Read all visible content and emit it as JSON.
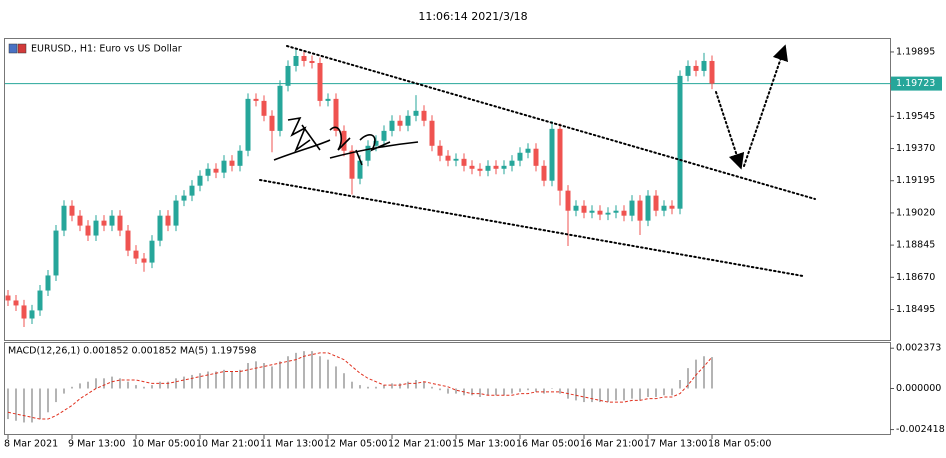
{
  "header": {
    "time": "11:06:14 2021/3/18"
  },
  "chart_data": [
    {
      "type": "candlestick",
      "title": "EURUSD., H1:  Euro vs US Dollar",
      "categories": [
        "8 Mar 2021",
        null,
        null,
        null,
        null,
        null,
        null,
        null,
        "9 Mar 13:00",
        null,
        null,
        null,
        null,
        null,
        null,
        null,
        "10 Mar 05:00",
        null,
        null,
        null,
        null,
        null,
        null,
        null,
        "10 Mar 21:00",
        null,
        null,
        null,
        null,
        null,
        null,
        null,
        "11 Mar 13:00",
        null,
        null,
        null,
        null,
        null,
        null,
        null,
        "12 Mar 05:00",
        null,
        null,
        null,
        null,
        null,
        null,
        null,
        "12 Mar 21:00",
        null,
        null,
        null,
        null,
        null,
        null,
        null,
        "15 Mar 13:00",
        null,
        null,
        null,
        null,
        null,
        null,
        null,
        "16 Mar 05:00",
        null,
        null,
        null,
        null,
        null,
        null,
        null,
        "16 Mar 21:00",
        null,
        null,
        null,
        null,
        null,
        null,
        null,
        "17 Mar 13:00",
        null,
        null,
        null,
        null,
        null,
        null,
        null,
        "18 Mar 05:00"
      ],
      "open": [
        1.18571,
        1.18544,
        1.18517,
        1.18446,
        1.1849,
        1.18598,
        1.1868,
        1.18924,
        1.19059,
        1.19005,
        1.18951,
        1.18897,
        1.18978,
        1.18951,
        1.19005,
        1.18924,
        1.18815,
        1.18772,
        1.1875,
        1.18869,
        1.19005,
        1.18951,
        1.19087,
        1.19114,
        1.19168,
        1.19222,
        1.1926,
        1.19239,
        1.19304,
        1.19276,
        1.19358,
        1.1964,
        1.19629,
        1.19548,
        1.19466,
        1.19711,
        1.19819,
        1.19873,
        1.19846,
        1.19835,
        1.19629,
        1.1964,
        1.19466,
        1.19358,
        1.19206,
        1.19304,
        1.19385,
        1.19412,
        1.19466,
        1.19521,
        1.19494,
        1.19548,
        1.19575,
        1.19521,
        1.19385,
        1.19331,
        1.19304,
        1.19314,
        1.19276,
        1.1926,
        1.19249,
        1.19276,
        1.1926,
        1.19276,
        1.19304,
        1.19347,
        1.19369,
        1.19276,
        1.19195,
        1.19477,
        1.19141,
        1.19032,
        1.19059,
        1.19021,
        1.19032,
        1.19011,
        1.19021,
        1.19032,
        1.19005,
        1.19087,
        1.18978,
        1.19114,
        1.19032,
        1.19059,
        1.19043,
        1.19765,
        1.19819,
        1.19792,
        1.19846
      ],
      "high": [
        1.18601,
        1.18574,
        1.18547,
        1.1852,
        1.18628,
        1.1871,
        1.18954,
        1.19089,
        1.19089,
        1.19035,
        1.18981,
        1.19008,
        1.19008,
        1.19035,
        1.19035,
        1.18954,
        1.18845,
        1.18802,
        1.18899,
        1.19035,
        1.19035,
        1.19117,
        1.19144,
        1.19198,
        1.19252,
        1.1929,
        1.1929,
        1.19334,
        1.19334,
        1.19388,
        1.1967,
        1.1967,
        1.19659,
        1.19578,
        1.19741,
        1.19849,
        1.1991,
        1.19903,
        1.19876,
        1.19865,
        1.1967,
        1.1967,
        1.19496,
        1.19388,
        1.19334,
        1.19415,
        1.19442,
        1.19496,
        1.19551,
        1.19551,
        1.19578,
        1.1966,
        1.19605,
        1.19551,
        1.19415,
        1.19361,
        1.19344,
        1.19344,
        1.19306,
        1.1929,
        1.19306,
        1.19306,
        1.19306,
        1.19334,
        1.19377,
        1.19399,
        1.19399,
        1.19306,
        1.1952,
        1.19507,
        1.19171,
        1.19089,
        1.19089,
        1.19062,
        1.19062,
        1.19051,
        1.19062,
        1.19062,
        1.19117,
        1.19117,
        1.19144,
        1.19144,
        1.19089,
        1.19089,
        1.19795,
        1.19849,
        1.19849,
        1.1989,
        1.19876
      ],
      "low": [
        1.18514,
        1.18487,
        1.184,
        1.18416,
        1.1846,
        1.18568,
        1.1865,
        1.18894,
        1.18975,
        1.18921,
        1.18867,
        1.18867,
        1.18921,
        1.18921,
        1.18894,
        1.18785,
        1.18742,
        1.187,
        1.1872,
        1.18839,
        1.18921,
        1.18921,
        1.19057,
        1.19084,
        1.19138,
        1.19192,
        1.19209,
        1.19209,
        1.19246,
        1.19246,
        1.19328,
        1.19599,
        1.19518,
        1.1935,
        1.19436,
        1.19681,
        1.19789,
        1.19816,
        1.19805,
        1.19599,
        1.19599,
        1.19436,
        1.19328,
        1.1912,
        1.19176,
        1.19274,
        1.19355,
        1.19382,
        1.19436,
        1.19464,
        1.19464,
        1.19518,
        1.19491,
        1.19355,
        1.19301,
        1.19274,
        1.19274,
        1.19246,
        1.1923,
        1.19219,
        1.19219,
        1.1923,
        1.1923,
        1.19246,
        1.19274,
        1.19317,
        1.19246,
        1.19165,
        1.19165,
        1.1906,
        1.1884,
        1.19002,
        1.18991,
        1.18991,
        1.18981,
        1.18981,
        1.18991,
        1.18975,
        1.18975,
        1.189,
        1.18948,
        1.19002,
        1.19002,
        1.19013,
        1.19013,
        1.19735,
        1.19762,
        1.19762,
        1.19693
      ],
      "close": [
        1.18544,
        1.18517,
        1.18446,
        1.1849,
        1.18598,
        1.1868,
        1.18924,
        1.19059,
        1.19005,
        1.18951,
        1.18897,
        1.18978,
        1.18951,
        1.19005,
        1.18924,
        1.18815,
        1.18772,
        1.1875,
        1.18869,
        1.19005,
        1.18951,
        1.19087,
        1.19114,
        1.19168,
        1.19222,
        1.1926,
        1.19239,
        1.19304,
        1.19276,
        1.19358,
        1.1964,
        1.19629,
        1.19548,
        1.19466,
        1.19711,
        1.19819,
        1.19873,
        1.19846,
        1.19835,
        1.19629,
        1.1964,
        1.19466,
        1.19358,
        1.19206,
        1.19304,
        1.19385,
        1.19412,
        1.19466,
        1.19521,
        1.19494,
        1.19548,
        1.19575,
        1.19521,
        1.19385,
        1.19331,
        1.19304,
        1.19314,
        1.19276,
        1.1926,
        1.19249,
        1.19276,
        1.1926,
        1.19276,
        1.19304,
        1.19347,
        1.19369,
        1.19276,
        1.19195,
        1.19477,
        1.19141,
        1.19032,
        1.19059,
        1.19021,
        1.19032,
        1.19011,
        1.19021,
        1.19032,
        1.19005,
        1.19087,
        1.18978,
        1.19114,
        1.19032,
        1.19059,
        1.19043,
        1.19765,
        1.19819,
        1.19792,
        1.19846,
        1.19723
      ],
      "up_color": "#26a69a",
      "down_color": "#ef5350",
      "ylim": [
        1.1834,
        1.1996
      ],
      "yticks": [
        1.19895,
        1.19545,
        {
          "value": 1.1937,
          "label": "1.19370"
        },
        1.19195,
        {
          "value": 1.1902,
          "label": "1.19020"
        },
        1.18845,
        {
          "value": 1.1867,
          "label": "1.18670"
        },
        1.18495
      ],
      "current_price": 1.19723,
      "current_price_color": "#26a69a"
    },
    {
      "type": "macd",
      "title": "MACD(12,26,1) 0.001852 0.001852 MA(5) 1.197598",
      "histogram": {
        "color": "#b4b4b4",
        "values": [
          -0.0018,
          -0.0019,
          -0.002,
          -0.002,
          -0.0018,
          -0.0014,
          -0.0008,
          -0.0003,
          0.0001,
          0.0003,
          0.0004,
          0.0006,
          0.0006,
          0.0007,
          0.0006,
          0.0004,
          0.0002,
          0.0001,
          0.0002,
          0.0004,
          0.0004,
          0.0006,
          0.0007,
          0.0008,
          0.0009,
          0.001,
          0.001,
          0.0011,
          0.001,
          0.0011,
          0.0015,
          0.0016,
          0.0015,
          0.0013,
          0.0016,
          0.0019,
          0.0021,
          0.0022,
          0.0022,
          0.0019,
          0.0017,
          0.0013,
          0.0009,
          0.0004,
          0.0002,
          0.0001,
          0.0001,
          0.0002,
          0.0003,
          0.0003,
          0.0004,
          0.0005,
          0.0004,
          0.0001,
          -0.0001,
          -0.0003,
          -0.0003,
          -0.0004,
          -0.0004,
          -0.0005,
          -0.0004,
          -0.0004,
          -0.0004,
          -0.0003,
          -0.0002,
          -0.0001,
          -0.0002,
          -0.0003,
          0,
          -0.0003,
          -0.0006,
          -0.0007,
          -0.0008,
          -0.0008,
          -0.0008,
          -0.0008,
          -0.0007,
          -0.0007,
          -0.0006,
          -0.0007,
          -0.0005,
          -0.0005,
          -0.0004,
          -0.0004,
          0.0005,
          0.0012,
          0.0017,
          0.0019,
          0.001852
        ]
      },
      "signal": {
        "color": "#e0301e",
        "values": [
          -0.0014,
          -0.0015,
          -0.0016,
          -0.0017,
          -0.0018,
          -0.0018,
          -0.0016,
          -0.0013,
          -0.001,
          -0.0006,
          -0.0003,
          0,
          0.0002,
          0.0004,
          0.0005,
          0.0005,
          0.0005,
          0.0004,
          0.0003,
          0.0003,
          0.0003,
          0.0004,
          0.0005,
          0.0006,
          0.0007,
          0.0008,
          0.0009,
          0.001,
          0.001,
          0.001,
          0.0011,
          0.0012,
          0.0013,
          0.0014,
          0.0015,
          0.0016,
          0.0017,
          0.0019,
          0.002,
          0.0021,
          0.0021,
          0.0019,
          0.0017,
          0.0013,
          0.0009,
          0.0006,
          0.0004,
          0.0002,
          0.0002,
          0.0002,
          0.0003,
          0.0003,
          0.0004,
          0.0003,
          0.0002,
          0.0001,
          -0.0001,
          -0.0002,
          -0.0003,
          -0.0003,
          -0.0004,
          -0.0004,
          -0.0004,
          -0.0004,
          -0.0003,
          -0.0003,
          -0.0002,
          -0.0002,
          -0.0002,
          -0.0002,
          -0.0003,
          -0.0004,
          -0.0005,
          -0.0006,
          -0.0007,
          -0.0008,
          -0.0008,
          -0.0008,
          -0.0007,
          -0.0007,
          -0.0006,
          -0.0006,
          -0.0005,
          -0.0005,
          -0.0003,
          0.0002,
          0.0008,
          0.0013,
          0.001852
        ]
      },
      "ylim": [
        -0.00268,
        0.00268
      ],
      "yticks": [
        0.002373,
        {
          "value": 0,
          "label": "0.000000"
        },
        -0.002418
      ]
    }
  ]
}
